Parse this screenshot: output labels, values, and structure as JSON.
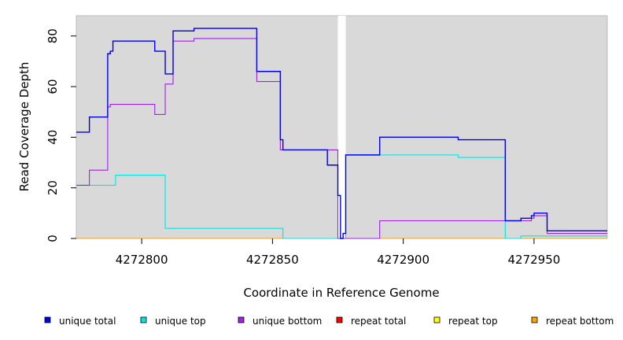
{
  "chart_data": {
    "type": "line",
    "xlabel": "Coordinate in Reference Genome",
    "ylabel": "Read Coverage Depth",
    "xlim": [
      4272775,
      4272978
    ],
    "ylim": [
      0,
      88
    ],
    "x_ticks": [
      4272800,
      4272850,
      4272900,
      4272950
    ],
    "y_ticks": [
      0,
      20,
      40,
      60,
      80
    ],
    "background": "#d9d9d9",
    "gap_region": [
      4272875,
      4272878
    ],
    "gap_color": "#ffffff",
    "legend_position": "bottom",
    "series": [
      {
        "name": "unique total",
        "color": "#0000ee",
        "x": [
          4272775,
          4272780,
          4272787,
          4272788,
          4272789,
          4272805,
          4272809,
          4272812,
          4272816,
          4272820,
          4272844,
          4272853,
          4272854,
          4272871,
          4272875,
          4272876,
          4272877,
          4272878,
          4272891,
          4272921,
          4272939,
          4272945,
          4272949,
          4272950,
          4272955,
          4272978
        ],
        "y": [
          42,
          48,
          73,
          74,
          78,
          74,
          65,
          82,
          82,
          83,
          66,
          39,
          35,
          29,
          17,
          0,
          2,
          33,
          40,
          39,
          7,
          8,
          9,
          10,
          3,
          3
        ]
      },
      {
        "name": "unique top",
        "color": "#00e5e5",
        "x": [
          4272775,
          4272790,
          4272809,
          4272854,
          4272875,
          4272878,
          4272921,
          4272939,
          4272945,
          4272978
        ],
        "y": [
          21,
          25,
          4,
          0,
          0,
          33,
          32,
          0,
          1,
          1
        ]
      },
      {
        "name": "unique bottom",
        "color": "#a020f0",
        "x": [
          4272775,
          4272780,
          4272787,
          4272788,
          4272805,
          4272809,
          4272812,
          4272816,
          4272820,
          4272844,
          4272853,
          4272854,
          4272875,
          4272891,
          4272939,
          4272945,
          4272949,
          4272950,
          4272955,
          4272978
        ],
        "y": [
          21,
          27,
          52,
          53,
          49,
          61,
          78,
          78,
          79,
          62,
          35,
          35,
          0,
          7,
          7,
          7,
          8,
          9,
          2,
          2
        ]
      },
      {
        "name": "repeat total",
        "color": "#ff0000",
        "x": [
          4272775,
          4272978
        ],
        "y": [
          0,
          0
        ]
      },
      {
        "name": "repeat top",
        "color": "#ffff00",
        "x": [
          4272775,
          4272978
        ],
        "y": [
          0,
          0
        ]
      },
      {
        "name": "repeat bottom",
        "color": "#ffa500",
        "x": [
          4272775,
          4272978
        ],
        "y": [
          0,
          0
        ]
      }
    ]
  }
}
